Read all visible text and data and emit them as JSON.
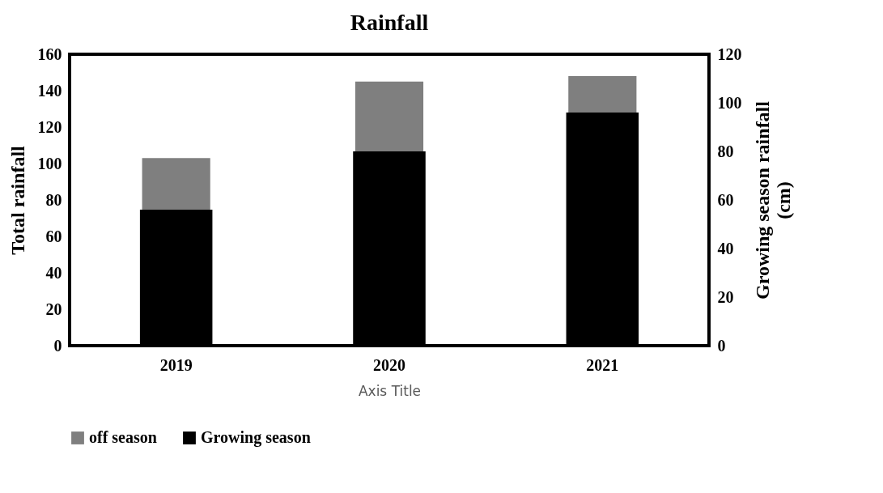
{
  "chart_data": {
    "type": "bar",
    "title": "Rainfall",
    "xlabel": "Axis Title",
    "ylabel": "Total rainfall",
    "y2label": "Growing season rainfall (cm)",
    "categories": [
      "2019",
      "2020",
      "2021"
    ],
    "series": [
      {
        "name": "off season",
        "color": "#7f7f7f",
        "values": [
          103,
          145,
          148
        ]
      },
      {
        "name": "Growing season",
        "color": "#000000",
        "values": [
          56,
          80,
          96
        ],
        "axis": "y2"
      }
    ],
    "ylim": [
      0,
      160
    ],
    "yticks": [
      0,
      20,
      40,
      60,
      80,
      100,
      120,
      140,
      160
    ],
    "y2lim": [
      0,
      120
    ],
    "y2ticks": [
      0,
      20,
      40,
      60,
      80,
      100,
      120
    ],
    "grid": false,
    "legend": "bottom"
  }
}
